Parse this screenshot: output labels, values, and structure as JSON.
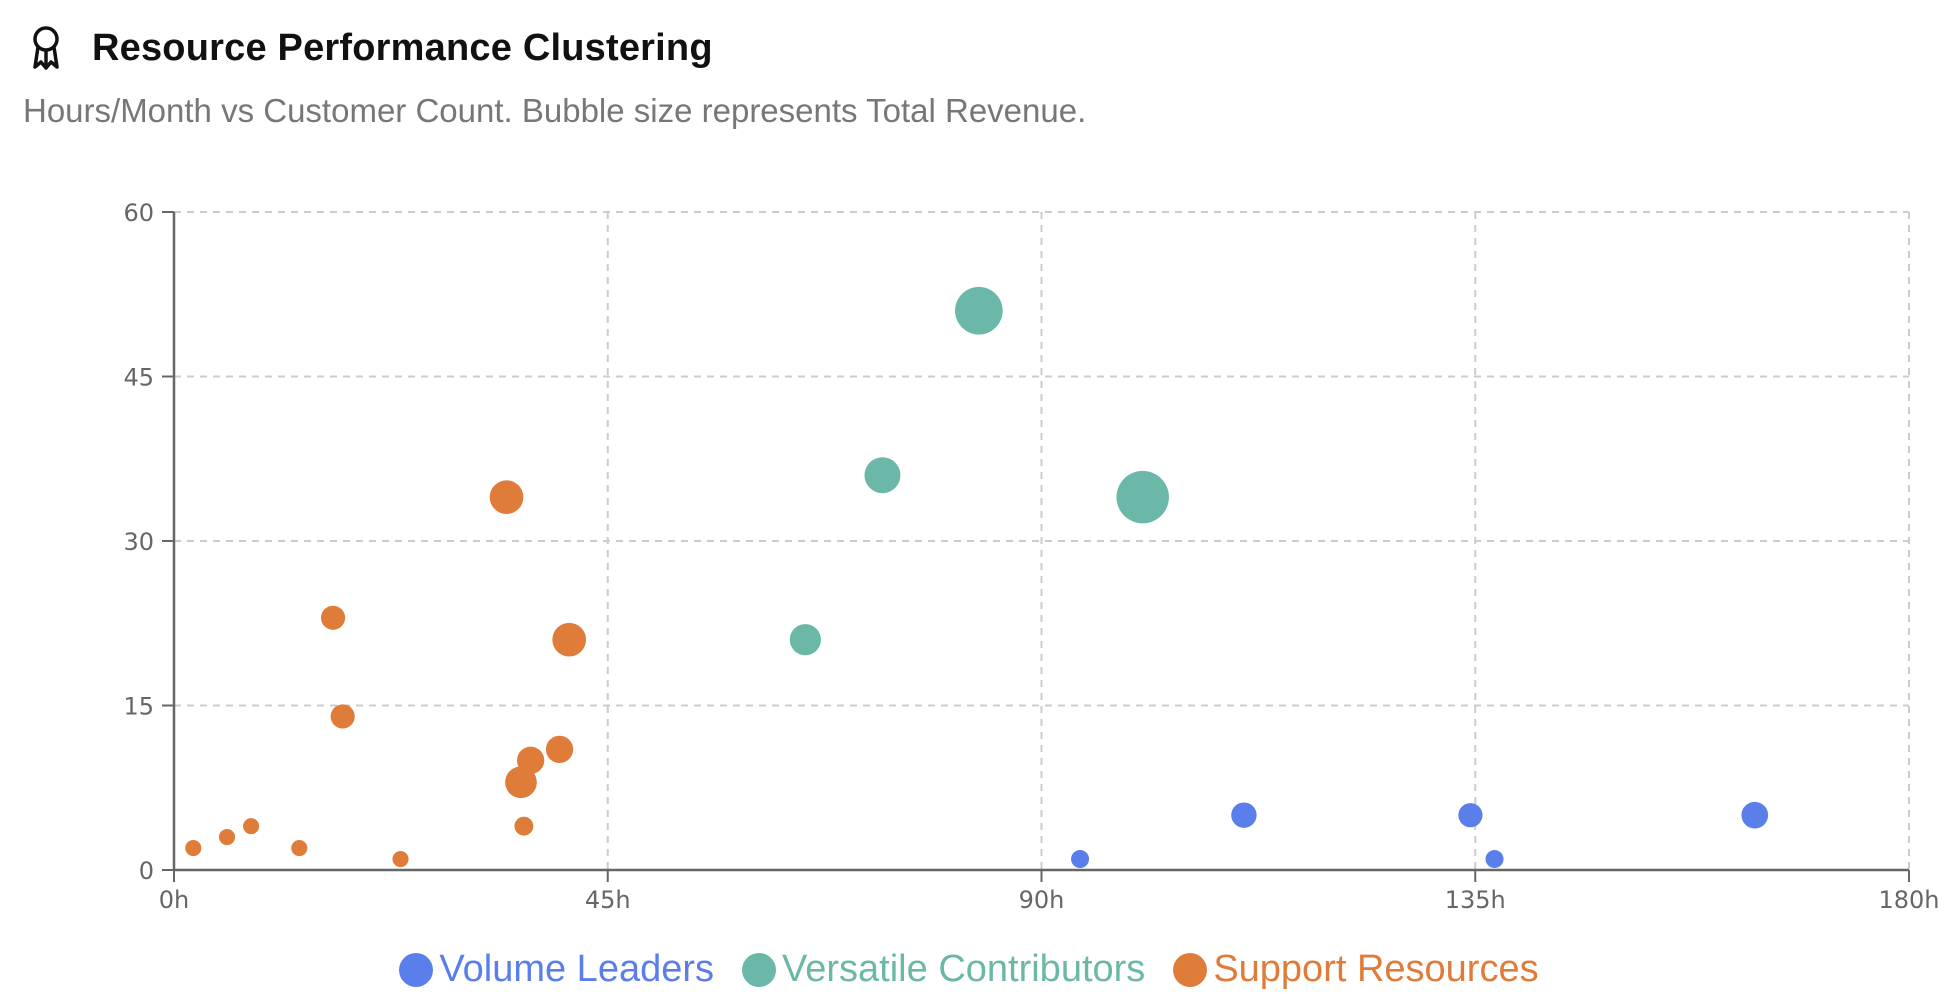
{
  "header": {
    "icon": "award-ribbon-icon",
    "title": "Resource Performance Clustering",
    "subtitle": "Hours/Month vs Customer Count. Bubble size represents Total Revenue."
  },
  "chart_data": {
    "type": "scatter",
    "xlabel": "",
    "ylabel": "",
    "xlim": [
      0,
      180
    ],
    "ylim": [
      0,
      60
    ],
    "x_ticks": [
      "0h",
      "45h",
      "90h",
      "135h",
      "180h"
    ],
    "x_tick_values": [
      0,
      45,
      90,
      135,
      180
    ],
    "y_ticks": [
      "0",
      "15",
      "30",
      "45",
      "60"
    ],
    "y_tick_values": [
      0,
      15,
      30,
      45,
      60
    ],
    "grid": true,
    "legend_position": "bottom-center",
    "size_encoding": "relative bubble size (Total Revenue)",
    "series": [
      {
        "name": "Volume Leaders",
        "color": "#5b7fea",
        "points": [
          {
            "x": 94,
            "y": 1,
            "size": 1
          },
          {
            "x": 111,
            "y": 5,
            "size": 2
          },
          {
            "x": 134.5,
            "y": 5,
            "size": 1.8
          },
          {
            "x": 137,
            "y": 1,
            "size": 1
          },
          {
            "x": 164,
            "y": 5,
            "size": 2.2
          }
        ]
      },
      {
        "name": "Versatile Contributors",
        "color": "#6cb8a8",
        "points": [
          {
            "x": 65.5,
            "y": 21,
            "size": 3
          },
          {
            "x": 73.5,
            "y": 36,
            "size": 4
          },
          {
            "x": 83.5,
            "y": 51,
            "size": 7
          },
          {
            "x": 100.5,
            "y": 34,
            "size": 8.5
          }
        ]
      },
      {
        "name": "Support Resources",
        "color": "#e07c3a",
        "points": [
          {
            "x": 2,
            "y": 2,
            "size": 0.8
          },
          {
            "x": 5.5,
            "y": 3,
            "size": 0.8
          },
          {
            "x": 8,
            "y": 4,
            "size": 0.8
          },
          {
            "x": 13,
            "y": 2,
            "size": 0.8
          },
          {
            "x": 16.5,
            "y": 23,
            "size": 1.8
          },
          {
            "x": 17.5,
            "y": 14,
            "size": 1.8
          },
          {
            "x": 23.5,
            "y": 1,
            "size": 0.8
          },
          {
            "x": 34.5,
            "y": 34,
            "size": 3.5
          },
          {
            "x": 36,
            "y": 8,
            "size": 3.1
          },
          {
            "x": 36.3,
            "y": 4,
            "size": 1.1
          },
          {
            "x": 37,
            "y": 10,
            "size": 2.3
          },
          {
            "x": 40,
            "y": 11,
            "size": 2.3
          },
          {
            "x": 41,
            "y": 21,
            "size": 3.5
          }
        ]
      }
    ]
  }
}
